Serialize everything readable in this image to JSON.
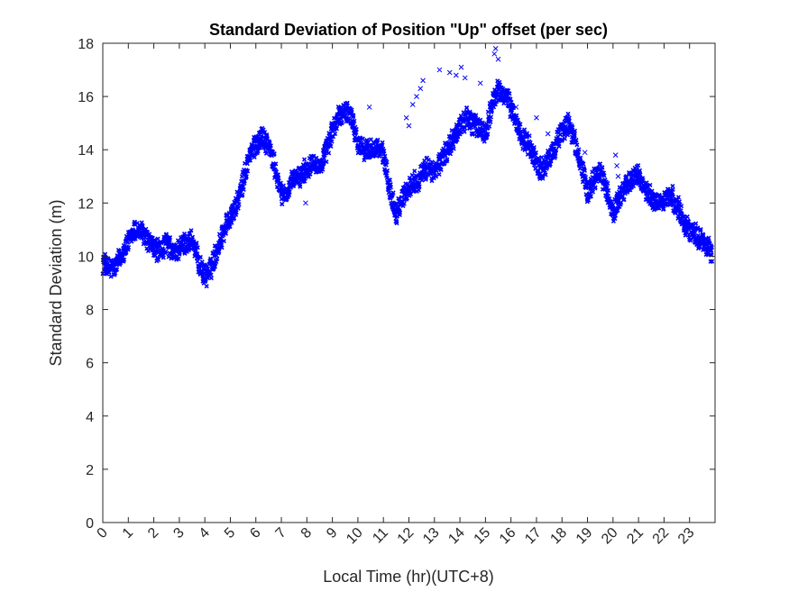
{
  "chart_data": {
    "type": "scatter",
    "title": "Standard Deviation of Position \"Up\" offset (per sec)",
    "xlabel": "Local Time (hr)(UTC+8)",
    "ylabel": "Standard Deviation (m)",
    "xlim": [
      0,
      24
    ],
    "ylim": [
      0,
      18
    ],
    "xticks": [
      "0",
      "1",
      "2",
      "3",
      "4",
      "5",
      "6",
      "7",
      "8",
      "9",
      "10",
      "11",
      "12",
      "13",
      "14",
      "15",
      "16",
      "17",
      "18",
      "19",
      "20",
      "21",
      "22",
      "23"
    ],
    "yticks": [
      "0",
      "2",
      "4",
      "6",
      "8",
      "10",
      "12",
      "14",
      "16",
      "18"
    ],
    "marker": "x",
    "color": "#0000ff",
    "grid": false,
    "band_half_width": 0.35,
    "trend": [
      [
        0.0,
        9.8
      ],
      [
        0.25,
        9.5
      ],
      [
        0.5,
        9.6
      ],
      [
        0.75,
        10.1
      ],
      [
        1.0,
        10.5
      ],
      [
        1.25,
        11.0
      ],
      [
        1.5,
        10.9
      ],
      [
        1.75,
        10.6
      ],
      [
        2.0,
        10.3
      ],
      [
        2.25,
        10.2
      ],
      [
        2.5,
        10.5
      ],
      [
        2.75,
        10.1
      ],
      [
        3.0,
        10.3
      ],
      [
        3.25,
        10.5
      ],
      [
        3.5,
        10.6
      ],
      [
        3.75,
        9.8
      ],
      [
        4.0,
        9.2
      ],
      [
        4.25,
        9.6
      ],
      [
        4.5,
        10.3
      ],
      [
        4.75,
        11.0
      ],
      [
        5.0,
        11.5
      ],
      [
        5.25,
        11.9
      ],
      [
        5.5,
        12.8
      ],
      [
        5.75,
        13.8
      ],
      [
        6.0,
        14.2
      ],
      [
        6.25,
        14.5
      ],
      [
        6.5,
        14.2
      ],
      [
        6.75,
        13.3
      ],
      [
        7.0,
        12.3
      ],
      [
        7.25,
        12.4
      ],
      [
        7.5,
        12.9
      ],
      [
        7.75,
        13.0
      ],
      [
        8.0,
        13.3
      ],
      [
        8.25,
        13.6
      ],
      [
        8.5,
        13.3
      ],
      [
        8.75,
        13.9
      ],
      [
        9.0,
        14.7
      ],
      [
        9.25,
        15.2
      ],
      [
        9.5,
        15.5
      ],
      [
        9.75,
        15.3
      ],
      [
        10.0,
        14.2
      ],
      [
        10.25,
        14.0
      ],
      [
        10.5,
        14.0
      ],
      [
        10.75,
        14.1
      ],
      [
        11.0,
        13.8
      ],
      [
        11.25,
        12.5
      ],
      [
        11.5,
        11.6
      ],
      [
        11.75,
        12.2
      ],
      [
        12.0,
        12.6
      ],
      [
        12.25,
        12.8
      ],
      [
        12.5,
        13.0
      ],
      [
        12.75,
        13.4
      ],
      [
        13.0,
        13.1
      ],
      [
        13.25,
        13.6
      ],
      [
        13.5,
        14.0
      ],
      [
        13.75,
        14.4
      ],
      [
        14.0,
        14.9
      ],
      [
        14.25,
        15.2
      ],
      [
        14.5,
        15.0
      ],
      [
        14.75,
        14.8
      ],
      [
        15.0,
        14.6
      ],
      [
        15.25,
        15.7
      ],
      [
        15.5,
        16.2
      ],
      [
        15.75,
        16.1
      ],
      [
        16.0,
        15.6
      ],
      [
        16.25,
        14.9
      ],
      [
        16.5,
        14.4
      ],
      [
        16.75,
        14.1
      ],
      [
        17.0,
        13.5
      ],
      [
        17.25,
        13.2
      ],
      [
        17.5,
        13.6
      ],
      [
        17.75,
        14.2
      ],
      [
        18.0,
        14.7
      ],
      [
        18.25,
        15.0
      ],
      [
        18.5,
        14.3
      ],
      [
        18.75,
        13.4
      ],
      [
        19.0,
        12.4
      ],
      [
        19.25,
        12.9
      ],
      [
        19.5,
        13.2
      ],
      [
        19.75,
        12.5
      ],
      [
        20.0,
        11.6
      ],
      [
        20.25,
        12.2
      ],
      [
        20.5,
        12.6
      ],
      [
        20.75,
        12.9
      ],
      [
        21.0,
        13.0
      ],
      [
        21.25,
        12.5
      ],
      [
        21.5,
        12.2
      ],
      [
        21.75,
        12.0
      ],
      [
        22.0,
        12.1
      ],
      [
        22.25,
        12.3
      ],
      [
        22.5,
        11.9
      ],
      [
        22.75,
        11.4
      ],
      [
        23.0,
        11.0
      ],
      [
        23.25,
        10.8
      ],
      [
        23.5,
        10.6
      ],
      [
        23.75,
        10.3
      ],
      [
        24.0,
        9.8
      ]
    ],
    "outliers": [
      [
        7.95,
        12.0
      ],
      [
        10.45,
        15.6
      ],
      [
        11.9,
        15.2
      ],
      [
        12.0,
        14.9
      ],
      [
        12.15,
        15.7
      ],
      [
        12.3,
        16.0
      ],
      [
        12.45,
        16.3
      ],
      [
        12.55,
        16.6
      ],
      [
        13.2,
        17.0
      ],
      [
        13.6,
        16.9
      ],
      [
        13.85,
        16.8
      ],
      [
        14.05,
        17.1
      ],
      [
        14.2,
        16.7
      ],
      [
        14.8,
        16.5
      ],
      [
        15.35,
        17.6
      ],
      [
        15.4,
        17.8
      ],
      [
        15.5,
        17.4
      ],
      [
        16.2,
        15.6
      ],
      [
        17.0,
        15.2
      ],
      [
        17.45,
        14.6
      ],
      [
        18.9,
        13.9
      ],
      [
        20.1,
        13.8
      ],
      [
        20.15,
        13.4
      ],
      [
        20.2,
        13.0
      ]
    ]
  }
}
